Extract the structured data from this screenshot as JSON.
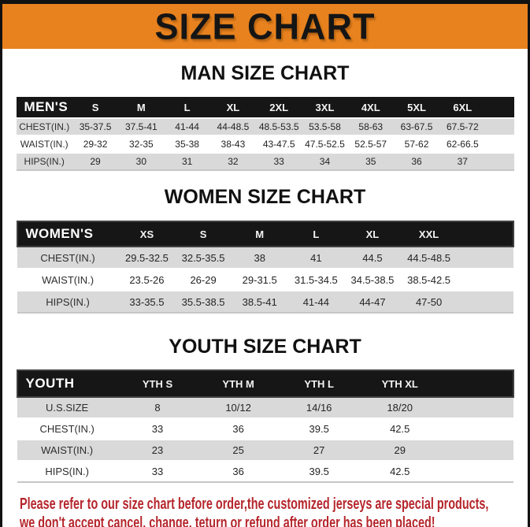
{
  "banner": {
    "title": "SIZE CHART"
  },
  "sections": [
    {
      "heading": "MAN SIZE CHART",
      "table": {
        "group_label": "MEN'S",
        "columns": [
          "S",
          "M",
          "L",
          "XL",
          "2XL",
          "3XL",
          "4XL",
          "5XL",
          "6XL"
        ],
        "rows": [
          {
            "label": "CHEST(IN.)",
            "values": [
              "35-37.5",
              "37.5-41",
              "41-44",
              "44-48.5",
              "48.5-53.5",
              "53.5-58",
              "58-63",
              "63-67.5",
              "67.5-72"
            ]
          },
          {
            "label": "WAIST(IN.)",
            "values": [
              "29-32",
              "32-35",
              "35-38",
              "38-43",
              "43-47.5",
              "47.5-52.5",
              "52.5-57",
              "57-62",
              "62-66.5"
            ]
          },
          {
            "label": "HIPS(IN.)",
            "values": [
              "29",
              "30",
              "31",
              "32",
              "33",
              "34",
              "35",
              "36",
              "37"
            ]
          }
        ]
      }
    },
    {
      "heading": "WOMEN SIZE CHART",
      "table": {
        "group_label": "WOMEN'S",
        "columns": [
          "XS",
          "S",
          "M",
          "L",
          "XL",
          "XXL"
        ],
        "rows": [
          {
            "label": "CHEST(IN.)",
            "values": [
              "29.5-32.5",
              "32.5-35.5",
              "38",
              "41",
              "44.5",
              "44.5-48.5"
            ]
          },
          {
            "label": "WAIST(IN.)",
            "values": [
              "23.5-26",
              "26-29",
              "29-31.5",
              "31.5-34.5",
              "34.5-38.5",
              "38.5-42.5"
            ]
          },
          {
            "label": "HIPS(IN.)",
            "values": [
              "33-35.5",
              "35.5-38.5",
              "38.5-41",
              "41-44",
              "44-47",
              "47-50"
            ]
          }
        ]
      }
    },
    {
      "heading": "YOUTH SIZE CHART",
      "table": {
        "group_label": "YOUTH",
        "columns": [
          "YTH S",
          "YTH M",
          "YTH L",
          "YTH XL"
        ],
        "rows": [
          {
            "label": "U.S.SIZE",
            "values": [
              "8",
              "10/12",
              "14/16",
              "18/20"
            ]
          },
          {
            "label": "CHEST(IN.)",
            "values": [
              "33",
              "36",
              "39.5",
              "42.5"
            ]
          },
          {
            "label": "WAIST(IN.)",
            "values": [
              "23",
              "25",
              "27",
              "29"
            ]
          },
          {
            "label": "HIPS(IN.)",
            "values": [
              "33",
              "36",
              "39.5",
              "42.5"
            ]
          }
        ]
      }
    }
  ],
  "footer": {
    "line1": "Please refer to our size chart before order,the customized jerseys are special products,",
    "line2": "we don't accept cancel, change, teturn or refund after order has been placed!"
  },
  "colors": {
    "banner_orange": "#E8821E",
    "header_black": "#161616",
    "row_gray": "#D9D9D9",
    "footer_red": "#B5262C",
    "border_black": "#111111"
  }
}
